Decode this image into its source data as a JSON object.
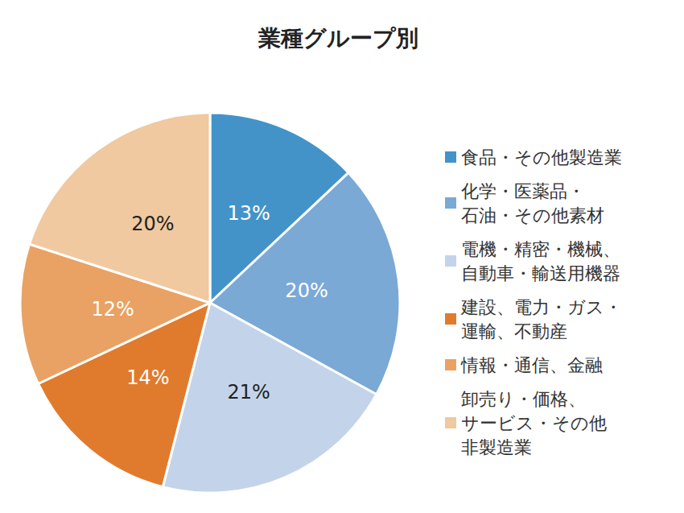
{
  "chart_data": {
    "type": "pie",
    "title": "業種グループ別",
    "categories": [
      "食品・その他製造業",
      "化学・医薬品・\n石油・その他素材",
      "電機・精密・機械、\n自動車・輸送用機器",
      "建設、電力・ガス・\n運輸、不動産",
      "情報・通信、金融",
      "卸売り・価格、\nサービス・その他\n非製造業"
    ],
    "values": [
      13,
      20,
      21,
      14,
      12,
      20
    ],
    "value_labels": [
      "13%",
      "20%",
      "21%",
      "14%",
      "12%",
      "20%"
    ],
    "colors": [
      "#4393c9",
      "#7aa9d6",
      "#c3d4ea",
      "#e07b2e",
      "#e9a263",
      "#f0c9a0"
    ],
    "data_labels": true,
    "legend": "right"
  }
}
